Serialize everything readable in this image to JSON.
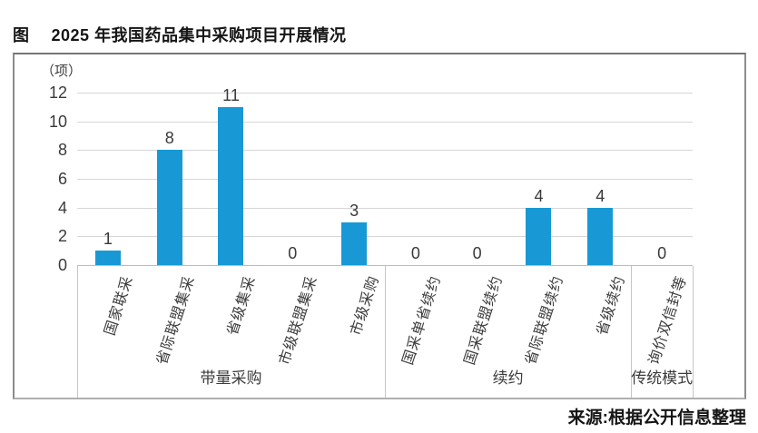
{
  "figure": {
    "title_prefix": "图",
    "title_text": "2025 年我国药品集中采购项目开展情况",
    "source_note": "来源:根据公开信息整理",
    "y_unit_label": "（项）"
  },
  "chart_data": {
    "type": "bar",
    "title": "2025 年我国药品集中采购项目开展情况",
    "unit_label": "（项）",
    "categories": [
      "国家联采",
      "省际联盟集采",
      "省级集采",
      "市级联盟集采",
      "市级采购",
      "国采单省续约",
      "国采联盟续约",
      "省际联盟续约",
      "省级续约",
      "询价双信封等"
    ],
    "values": [
      1,
      8,
      11,
      0,
      3,
      0,
      0,
      4,
      4,
      0
    ],
    "groups": [
      {
        "label": "带量采购",
        "span": 5
      },
      {
        "label": "续约",
        "span": 4
      },
      {
        "label": "传统模式",
        "span": 1
      }
    ],
    "yticks": [
      0,
      2,
      4,
      6,
      8,
      10,
      12
    ],
    "ylim": [
      0,
      12
    ],
    "grid": true,
    "legend": null,
    "bar_color": "#1899d6",
    "value_labels_shown": true,
    "xlabel": "",
    "ylabel": "（项）"
  }
}
